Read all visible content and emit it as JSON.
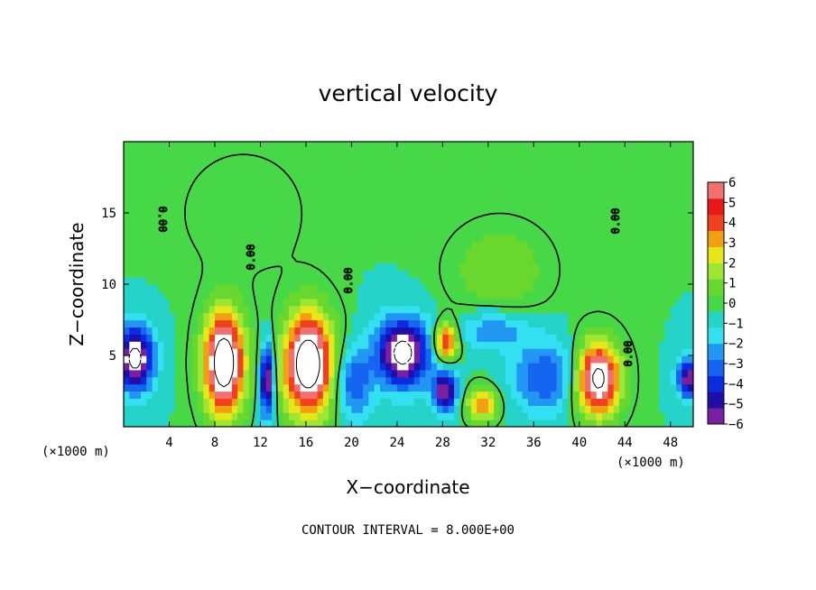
{
  "chart_data": {
    "type": "heatmap",
    "title": "vertical velocity",
    "xlabel": "X−coordinate",
    "ylabel": "Z−coordinate",
    "x_unit": "(×1000 m)",
    "y_unit": "(×1000 m)",
    "xlim": [
      0,
      50
    ],
    "ylim": [
      0,
      20
    ],
    "x_ticks": [
      4,
      8,
      12,
      16,
      20,
      24,
      28,
      32,
      36,
      40,
      44,
      48
    ],
    "x_tick_labels": [
      "4",
      "8",
      "12",
      "16",
      "20",
      "24",
      "28",
      "32",
      "36",
      "40",
      "44",
      "48"
    ],
    "y_ticks": [
      5,
      10,
      15
    ],
    "y_tick_labels": [
      "5",
      "10",
      "15"
    ],
    "colorbar": {
      "levels": [
        -6,
        -5,
        -4,
        -3,
        -2,
        -1,
        0,
        1,
        2,
        3,
        4,
        5,
        6
      ],
      "labels": [
        "−6",
        "−5",
        "−4",
        "−3",
        "−2",
        "−1",
        "0",
        "1",
        "2",
        "3",
        "4",
        "5",
        "6"
      ],
      "colors": [
        "#7b1fa2",
        "#1e0fa8",
        "#0a2be0",
        "#1565f0",
        "#2196f3",
        "#33e0f2",
        "#25d3c8",
        "#46d846",
        "#68d82e",
        "#9ee634",
        "#e6e619",
        "#f0a010",
        "#f04020",
        "#e81818",
        "#f07070"
      ]
    },
    "contour_label": "0.00",
    "contour_interval_text": "CONTOUR INTERVAL = 8.000E+00",
    "features": [
      {
        "x": 1.0,
        "z": 4.8,
        "value": -9.0,
        "sx": 1.6,
        "sz": 2.2
      },
      {
        "x": 8.8,
        "z": 4.5,
        "value": 10.0,
        "sx": 1.8,
        "sz": 3.6
      },
      {
        "x": 12.6,
        "z": 3.2,
        "value": -8.0,
        "sx": 0.6,
        "sz": 2.6
      },
      {
        "x": 16.2,
        "z": 4.4,
        "value": 10.0,
        "sx": 2.2,
        "sz": 3.6
      },
      {
        "x": 24.5,
        "z": 5.2,
        "value": -9.0,
        "sx": 2.3,
        "sz": 2.4
      },
      {
        "x": 28.3,
        "z": 6.0,
        "value": 7.0,
        "sx": 1.0,
        "sz": 1.3
      },
      {
        "x": 28.2,
        "z": 2.5,
        "value": -7.0,
        "sx": 1.1,
        "sz": 1.4
      },
      {
        "x": 31.5,
        "z": 1.6,
        "value": 5.0,
        "sx": 1.4,
        "sz": 1.2
      },
      {
        "x": 41.6,
        "z": 3.4,
        "value": 9.0,
        "sx": 2.0,
        "sz": 2.6
      },
      {
        "x": 49.6,
        "z": 3.4,
        "value": -7.0,
        "sx": 1.0,
        "sz": 1.4
      },
      {
        "x": 37.0,
        "z": 3.5,
        "value": -4.0,
        "sx": 3.0,
        "sz": 2.5
      },
      {
        "x": 20.2,
        "z": 3.0,
        "value": -4.0,
        "sx": 1.6,
        "sz": 2.5
      },
      {
        "x": 32.5,
        "z": 6.8,
        "value": -3.0,
        "sx": 3.0,
        "sz": 1.3
      },
      {
        "x": 33.0,
        "z": 11.0,
        "value": 2.0,
        "sx": 4.0,
        "sz": 3.0
      },
      {
        "x": 10.5,
        "z": 15.0,
        "value": 1.0,
        "sx": 5.0,
        "sz": 4.0
      }
    ]
  }
}
